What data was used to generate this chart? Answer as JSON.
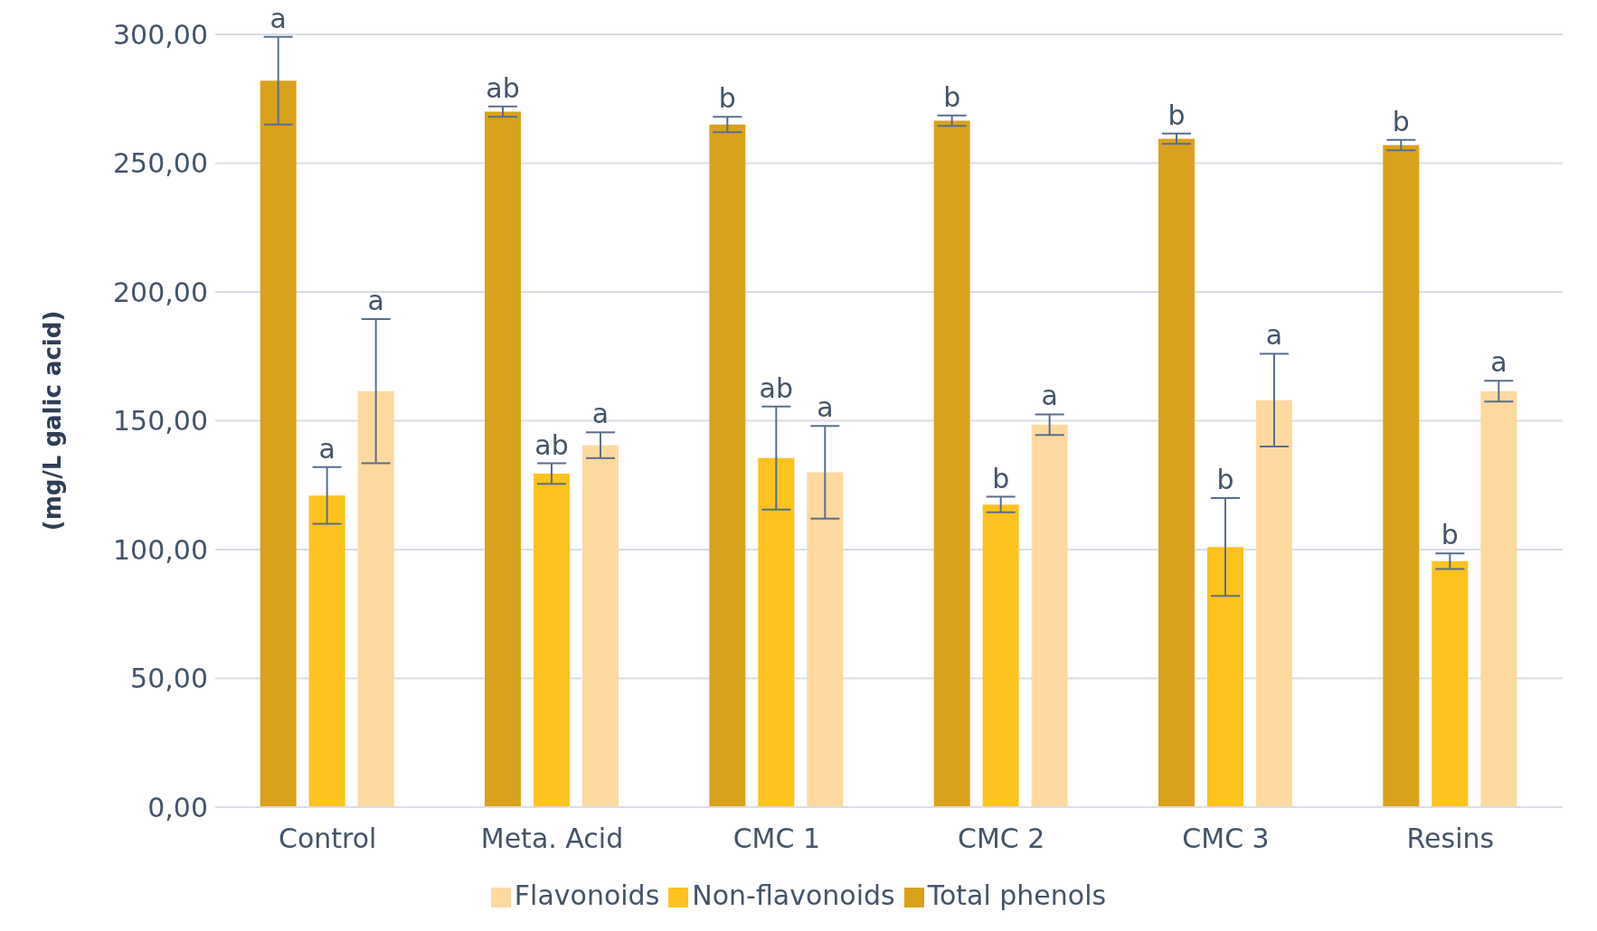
{
  "chart_data": {
    "type": "bar",
    "ylabel": "(mg/L galic acid)",
    "categories": [
      "Control",
      "Meta. Acid",
      "CMC 1",
      "CMC 2",
      "CMC 3",
      "Resins"
    ],
    "series": [
      {
        "name": "Total phenols",
        "color": "#d9a21c",
        "values": [
          282,
          270,
          265,
          266.5,
          259.5,
          257
        ],
        "errors": [
          17,
          2,
          3,
          2,
          2,
          2
        ],
        "value_labels": [
          "a",
          "ab",
          "b",
          "b",
          "b",
          "b"
        ]
      },
      {
        "name": "Non-flavonoids",
        "color": "#fcc21e",
        "values": [
          121,
          129.5,
          135.5,
          117.5,
          101,
          95.5
        ],
        "errors": [
          11,
          4,
          20,
          3,
          19,
          3
        ],
        "value_labels": [
          "a",
          "ab",
          "ab",
          "b",
          "b",
          "b"
        ]
      },
      {
        "name": "Flavonoids",
        "color": "#fdd9a0",
        "values": [
          161.5,
          140.5,
          130,
          148.5,
          158,
          161.5
        ],
        "errors": [
          28,
          5,
          18,
          4,
          18,
          4
        ],
        "value_labels": [
          "a",
          "a",
          "a",
          "a",
          "a",
          "a"
        ]
      }
    ],
    "ylim": [
      0,
      300
    ],
    "yticks": [
      {
        "value": 0,
        "label": "0,00"
      },
      {
        "value": 50,
        "label": "50,00"
      },
      {
        "value": 100,
        "label": "100,00"
      },
      {
        "value": 150,
        "label": "150,00"
      },
      {
        "value": 200,
        "label": "200,00"
      },
      {
        "value": 250,
        "label": "250,00"
      },
      {
        "value": 300,
        "label": "300,00"
      }
    ],
    "grid": "y",
    "legend": "bottom"
  }
}
